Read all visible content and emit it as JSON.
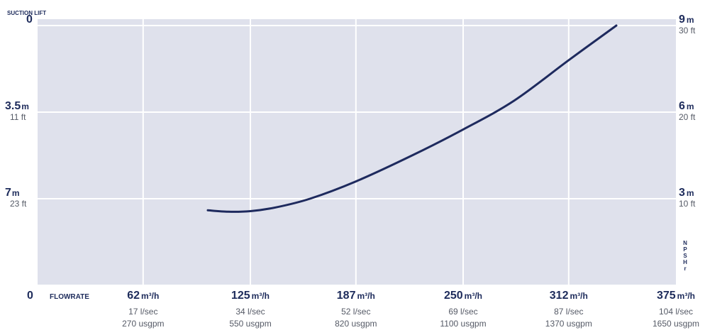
{
  "chart_data": {
    "type": "line",
    "title": "",
    "left_axis": {
      "title": "SUCTION LIFT",
      "unit": "m",
      "range": [
        0,
        10
      ],
      "inverted": true,
      "ticks": [
        {
          "value": 0,
          "label": "0",
          "sub": ""
        },
        {
          "value": 3.5,
          "label": "3.5",
          "unit": "m",
          "sub": "11 ft"
        },
        {
          "value": 7,
          "label": "7",
          "unit": "m",
          "sub": "23 ft"
        }
      ]
    },
    "right_axis": {
      "title": "NPSHr",
      "title_letters": [
        "N",
        "P",
        "S",
        "H",
        "r"
      ],
      "unit": "m",
      "range": [
        0,
        9
      ],
      "ticks": [
        {
          "value": 9,
          "label": "9",
          "unit": "m",
          "sub": "30 ft"
        },
        {
          "value": 6,
          "label": "6",
          "unit": "m",
          "sub": "20 ft"
        },
        {
          "value": 3,
          "label": "3",
          "unit": "m",
          "sub": "10 ft"
        }
      ]
    },
    "x_axis": {
      "title": "FLOWRATE",
      "unit": "m³/h",
      "range": [
        0,
        375
      ],
      "origin_label": "0",
      "ticks": [
        {
          "value": 62,
          "label": "62",
          "unit": "m³/h",
          "sub1": "17 l/sec",
          "sub2": "270 usgpm"
        },
        {
          "value": 125,
          "label": "125",
          "unit": "m³/h",
          "sub1": "34 l/sec",
          "sub2": "550 usgpm"
        },
        {
          "value": 187,
          "label": "187",
          "unit": "m³/h",
          "sub1": "52 l/sec",
          "sub2": "820 usgpm"
        },
        {
          "value": 250,
          "label": "250",
          "unit": "m³/h",
          "sub1": "69 l/sec",
          "sub2": "1100 usgpm"
        },
        {
          "value": 312,
          "label": "312",
          "unit": "m³/h",
          "sub1": "87 l/sec",
          "sub2": "1370 usgpm"
        },
        {
          "value": 375,
          "label": "375",
          "unit": "m³/h",
          "sub1": "104 l/sec",
          "sub2": "1650 usgpm"
        }
      ]
    },
    "series": [
      {
        "axis": "right",
        "color": "#1e2a5e",
        "points": [
          [
            100,
            2.6
          ],
          [
            112,
            2.55
          ],
          [
            125,
            2.57
          ],
          [
            140,
            2.7
          ],
          [
            160,
            3.0
          ],
          [
            187,
            3.6
          ],
          [
            220,
            4.5
          ],
          [
            250,
            5.4
          ],
          [
            280,
            6.4
          ],
          [
            312,
            7.8
          ],
          [
            340,
            9.0
          ]
        ]
      }
    ],
    "grid": true
  },
  "colors": {
    "plot_background": "#dfe1ec",
    "grid": "#ffffff",
    "text": "#1d2b5b",
    "subtext": "#555a66"
  }
}
